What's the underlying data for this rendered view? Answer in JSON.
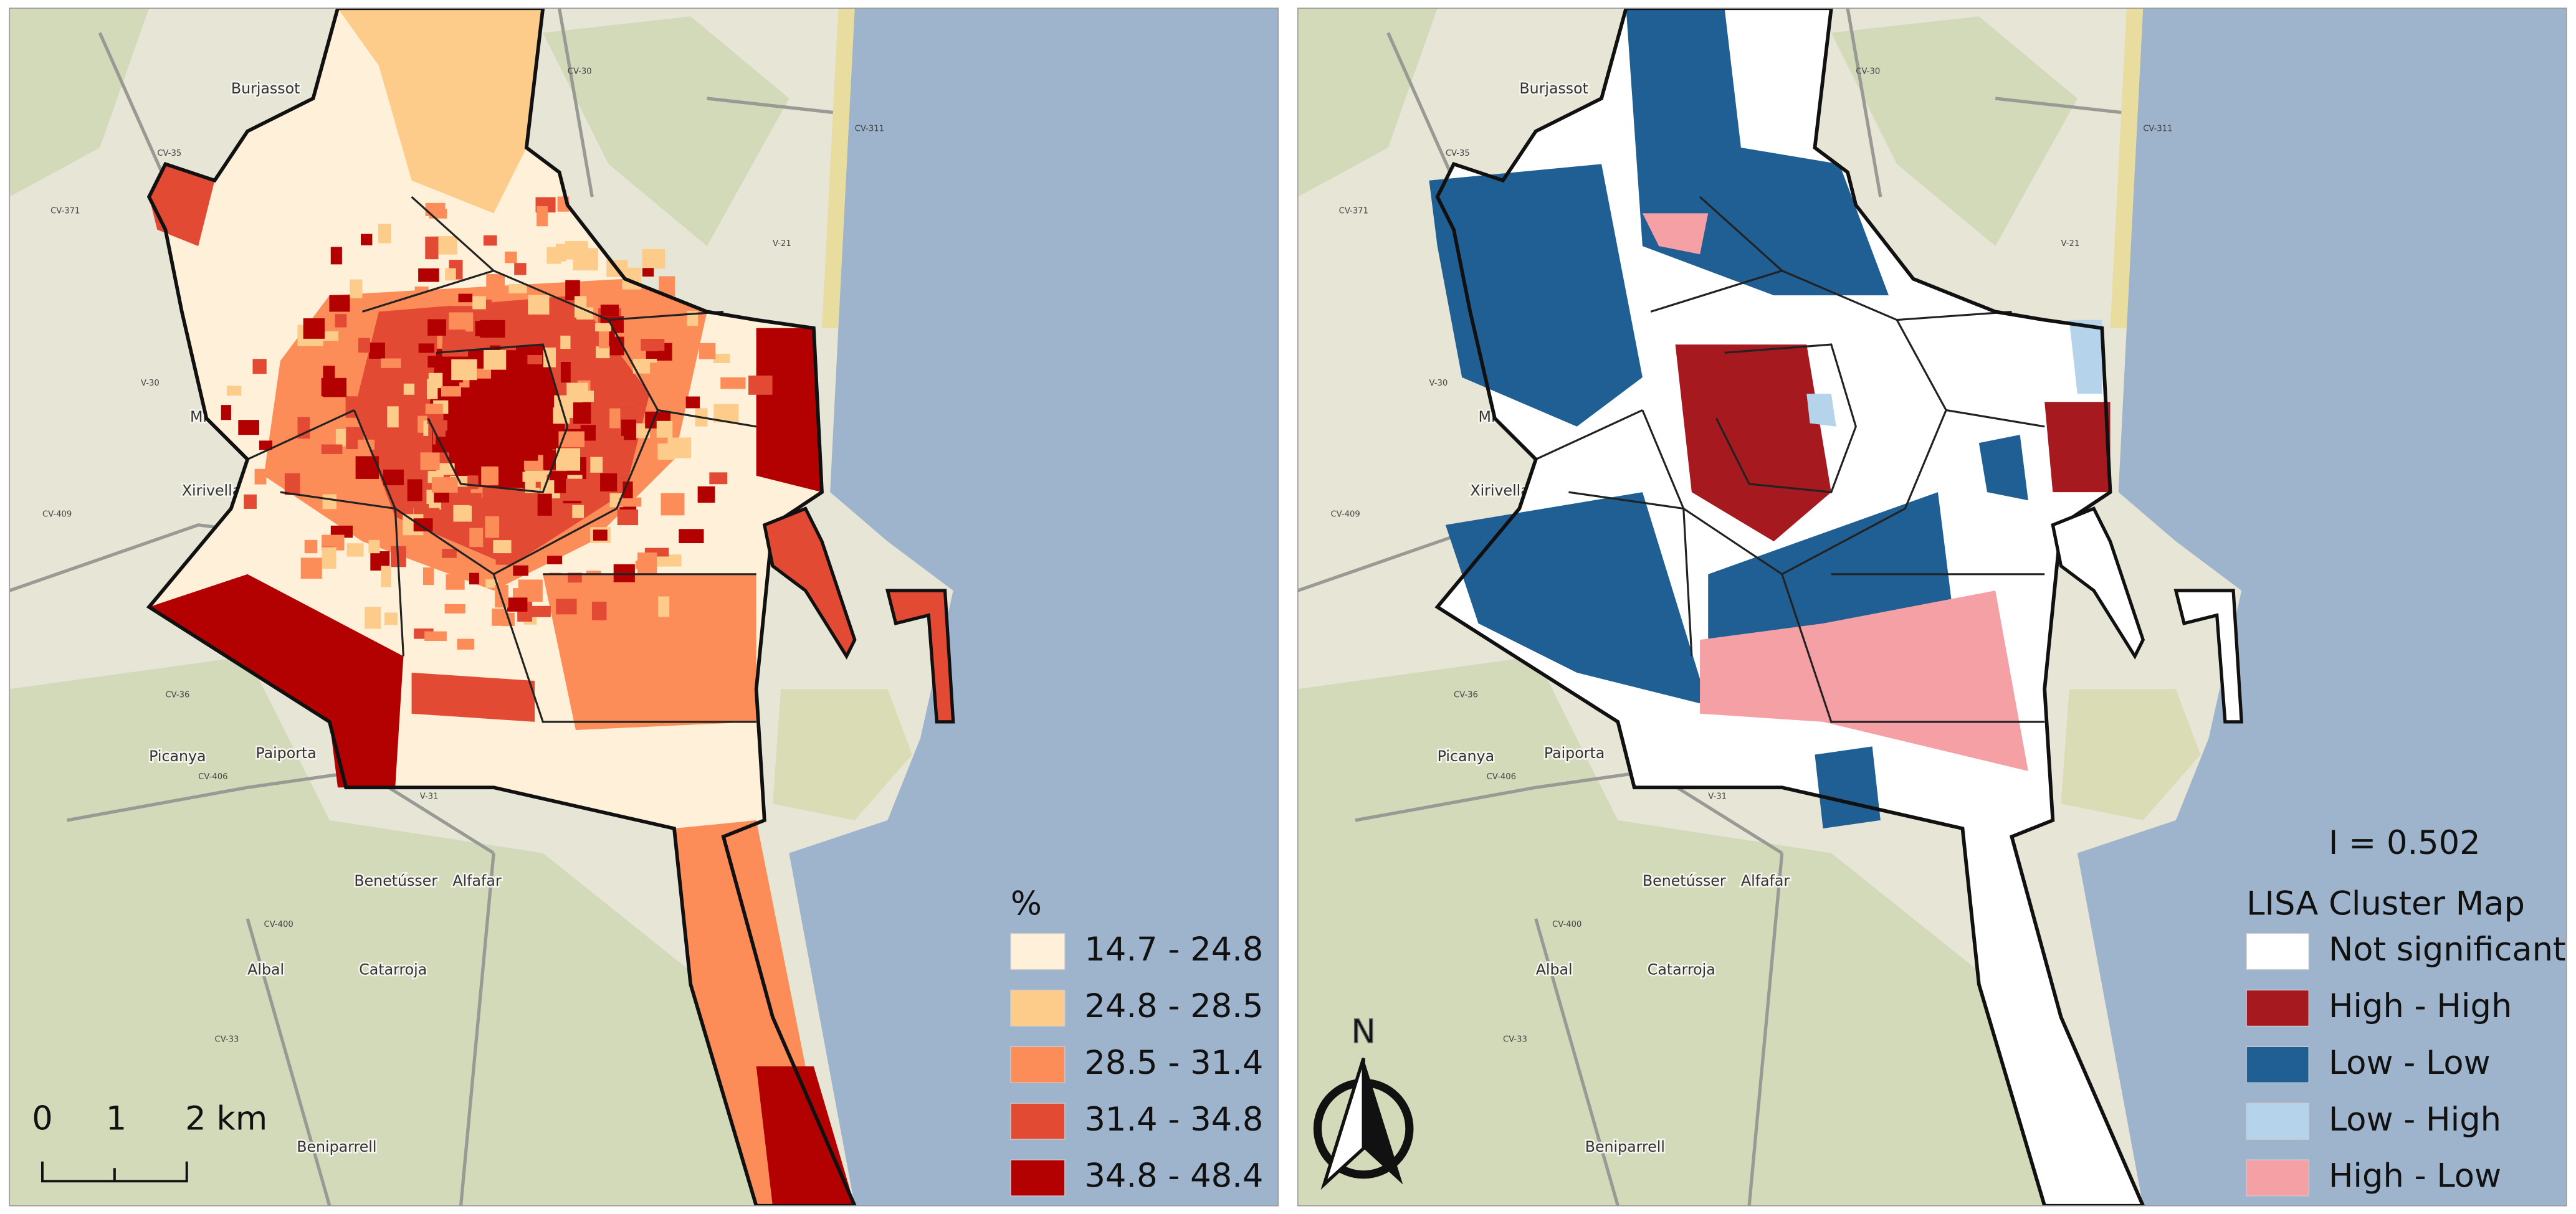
{
  "maps": [
    {
      "legend": {
        "title": "%",
        "items": [
          {
            "label": "14.7 - 24.8",
            "color": "#fef0d9"
          },
          {
            "label": "24.8 - 28.5",
            "color": "#fdcc8a"
          },
          {
            "label": "28.5 - 31.4",
            "color": "#fc8d59"
          },
          {
            "label": "31.4 - 34.8",
            "color": "#e34a33"
          },
          {
            "label": "34.8 - 48.4",
            "color": "#b30000"
          }
        ]
      },
      "scale_bar": {
        "labels": [
          "0",
          "1",
          "2 km"
        ]
      }
    },
    {
      "statistic": "I = 0.502",
      "legend": {
        "title": "LISA Cluster Map",
        "items": [
          {
            "label": "Not significant",
            "color": "#ffffff"
          },
          {
            "label": "High - High",
            "color": "#a6191f"
          },
          {
            "label": "Low - Low",
            "color": "#1f5f94"
          },
          {
            "label": "Low - High",
            "color": "#b5d3ea"
          },
          {
            "label": "High - Low",
            "color": "#f4a0a5"
          }
        ]
      },
      "north_arrow": "N"
    }
  ],
  "place_labels": [
    "Burjassot",
    "Mislata",
    "Xirivella",
    "Picanya",
    "Paiporta",
    "Benetússer",
    "Alfafar",
    "Albal",
    "Catarroja",
    "Beniparrell"
  ],
  "road_labels": [
    "CV-35",
    "CV-371",
    "V-21",
    "V-30",
    "CV-409",
    "CV-36",
    "CV-406",
    "V-31",
    "CV-400",
    "CV-33",
    "CV-311",
    "CV-30"
  ]
}
